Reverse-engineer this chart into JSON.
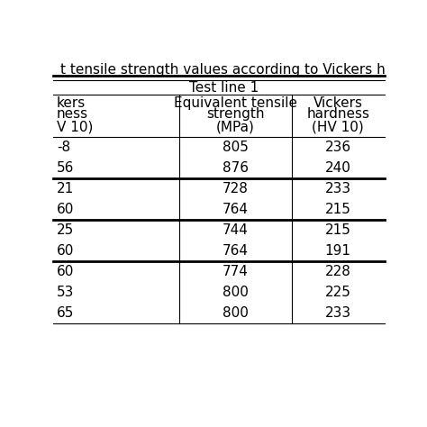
{
  "title": "t tensile strength values according to Vickers ha",
  "section_header": "Test line 1",
  "col1_header": [
    "kers",
    "ness",
    "V 10)"
  ],
  "col2_header": [
    "Equivalent tensile",
    "strength",
    "(MPa)"
  ],
  "col3_header": [
    "Vickers",
    "hardness",
    "(HV 10)"
  ],
  "groups": [
    {
      "rows": [
        [
          "-8",
          "805",
          "236"
        ],
        [
          "56",
          "876",
          "240"
        ]
      ]
    },
    {
      "rows": [
        [
          "21",
          "728",
          "233"
        ],
        [
          "60",
          "764",
          "215"
        ]
      ]
    },
    {
      "rows": [
        [
          "25",
          "744",
          "215"
        ],
        [
          "60",
          "764",
          "191"
        ]
      ]
    },
    {
      "rows": [
        [
          "60",
          "774",
          "228"
        ],
        [
          "53",
          "800",
          "225"
        ],
        [
          "65",
          "800",
          "233"
        ]
      ]
    }
  ],
  "bg_color": "#ffffff",
  "text_color": "#000000",
  "line_color": "#000000",
  "font_size": 11,
  "header_font_size": 11,
  "lw_thick": 2.0,
  "lw_thin": 0.8
}
